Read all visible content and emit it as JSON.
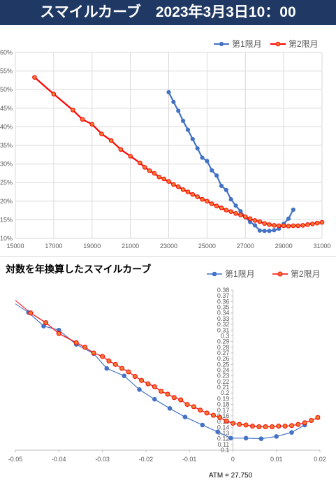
{
  "banner": {
    "title": "スマイルカーブ　2023年3月3日10：00",
    "bg": "#1f3864"
  },
  "colors": {
    "series1": "#4472c4",
    "series2": "#ff0000",
    "series2_fill": "#ed7d31",
    "grid": "#d9d9d9"
  },
  "chart_data": [
    {
      "type": "line",
      "title": "",
      "xlim": [
        15000,
        31000
      ],
      "ylim": [
        0.1,
        0.6
      ],
      "xticks": [
        15000,
        17000,
        19000,
        21000,
        23000,
        25000,
        27000,
        29000,
        31000
      ],
      "xtick_labels": [
        "15000",
        "17000",
        "19000",
        "21000",
        "23000",
        "25000",
        "27000",
        "29000",
        "31000"
      ],
      "yticks": [
        0.1,
        0.15,
        0.2,
        0.25,
        0.3,
        0.35,
        0.4,
        0.45,
        0.5,
        0.55,
        0.6
      ],
      "ytick_labels": [
        "10%",
        "15%",
        "20%",
        "25%",
        "30%",
        "35%",
        "40%",
        "45%",
        "50%",
        "55%",
        "60%"
      ],
      "grid": true,
      "legend": "top-right",
      "series": [
        {
          "name": "第1限月",
          "x": [
            23000,
            23250,
            23500,
            23750,
            24000,
            24250,
            24500,
            24750,
            25000,
            25250,
            25500,
            25750,
            26000,
            26250,
            26500,
            26750,
            27000,
            27250,
            27500,
            27750,
            28000,
            28250,
            28500,
            28750,
            29000,
            29250,
            29500
          ],
          "y": [
            0.493,
            0.467,
            0.443,
            0.416,
            0.392,
            0.367,
            0.342,
            0.317,
            0.308,
            0.283,
            0.269,
            0.241,
            0.23,
            0.205,
            0.188,
            0.173,
            0.157,
            0.144,
            0.135,
            0.121,
            0.12,
            0.12,
            0.122,
            0.126,
            0.139,
            0.153,
            0.177
          ]
        },
        {
          "name": "第2限月",
          "x": [
            16000,
            17000,
            18000,
            18500,
            19000,
            19500,
            20000,
            20500,
            21000,
            21500,
            21750,
            22000,
            22250,
            22500,
            22750,
            23000,
            23250,
            23500,
            23750,
            24000,
            24250,
            24500,
            24750,
            25000,
            25250,
            25500,
            25750,
            26000,
            26250,
            26500,
            26750,
            27000,
            27250,
            27500,
            27750,
            28000,
            28250,
            28500,
            28750,
            29000,
            29250,
            29500,
            29750,
            30000,
            30250,
            30500,
            30750,
            31000
          ],
          "y": [
            0.533,
            0.488,
            0.445,
            0.42,
            0.407,
            0.381,
            0.363,
            0.339,
            0.321,
            0.303,
            0.291,
            0.282,
            0.275,
            0.265,
            0.26,
            0.253,
            0.245,
            0.239,
            0.231,
            0.225,
            0.218,
            0.212,
            0.205,
            0.2,
            0.193,
            0.187,
            0.182,
            0.176,
            0.172,
            0.167,
            0.163,
            0.158,
            0.153,
            0.148,
            0.145,
            0.14,
            0.137,
            0.135,
            0.134,
            0.134,
            0.133,
            0.134,
            0.134,
            0.135,
            0.137,
            0.139,
            0.141,
            0.143
          ]
        }
      ]
    },
    {
      "type": "line",
      "title": "対数を年換算したスマイルカーブ",
      "xlim": [
        -0.05,
        0.02
      ],
      "ylim": [
        0.1,
        0.38
      ],
      "xticks": [
        -0.05,
        -0.04,
        -0.03,
        -0.02,
        -0.01,
        0,
        0.01,
        0.02
      ],
      "xtick_labels": [
        "-0.05",
        "-0.04",
        "-0.03",
        "-0.02",
        "-0.01",
        "0",
        "0.01",
        "0.02"
      ],
      "yticks": [
        0.1,
        0.11,
        0.12,
        0.13,
        0.14,
        0.15,
        0.16,
        0.17,
        0.18,
        0.19,
        0.2,
        0.21,
        0.22,
        0.23,
        0.24,
        0.25,
        0.26,
        0.27,
        0.28,
        0.29,
        0.3,
        0.31,
        0.32,
        0.33,
        0.34,
        0.35,
        0.36,
        0.37,
        0.38
      ],
      "ytick_labels": [
        "0.1",
        "0.11",
        "0.12",
        "0.13",
        "0.14",
        "0.15",
        "0.16",
        "0.17",
        "0.18",
        "0.19",
        "0.2",
        "0.21",
        "0.22",
        "0.23",
        "0.24",
        "0.25",
        "0.26",
        "0.27",
        "0.28",
        "0.29",
        "0.3",
        "0.31",
        "0.32",
        "0.33",
        "0.34",
        "0.35",
        "0.36",
        "0.37",
        "0.38"
      ],
      "y_axis_at_x": 0,
      "grid": false,
      "legend": "top-right",
      "annotation": "ATM = 27,750",
      "series": [
        {
          "name": "第1限月",
          "x": [
            -0.047,
            -0.0435,
            -0.04,
            -0.036,
            -0.032,
            -0.029,
            -0.025,
            -0.0215,
            -0.018,
            -0.0145,
            -0.011,
            -0.007,
            -0.0035,
            -0.0005,
            0.003,
            0.0065,
            0.01,
            0.0135,
            0.0165
          ],
          "y": [
            0.341,
            0.317,
            0.31,
            0.285,
            0.269,
            0.243,
            0.23,
            0.206,
            0.189,
            0.173,
            0.158,
            0.144,
            0.132,
            0.121,
            0.121,
            0.12,
            0.124,
            0.131,
            0.144
          ]
        },
        {
          "name": "第2限月",
          "x": [
            -0.0465,
            -0.043,
            -0.04,
            -0.036,
            -0.034,
            -0.032,
            -0.03,
            -0.0285,
            -0.027,
            -0.0255,
            -0.024,
            -0.0225,
            -0.021,
            -0.0195,
            -0.018,
            -0.0165,
            -0.015,
            -0.0135,
            -0.012,
            -0.0105,
            -0.009,
            -0.0075,
            -0.006,
            -0.0045,
            -0.003,
            -0.0015,
            0.0,
            0.0015,
            0.003,
            0.0045,
            0.006,
            0.0075,
            0.009,
            0.0105,
            0.012,
            0.0135,
            0.015,
            0.0165,
            0.018,
            0.0195
          ],
          "y": [
            0.34,
            0.323,
            0.304,
            0.288,
            0.28,
            0.27,
            0.264,
            0.256,
            0.25,
            0.243,
            0.237,
            0.229,
            0.222,
            0.216,
            0.211,
            0.203,
            0.198,
            0.192,
            0.188,
            0.18,
            0.176,
            0.17,
            0.165,
            0.161,
            0.157,
            0.151,
            0.147,
            0.145,
            0.144,
            0.142,
            0.141,
            0.141,
            0.141,
            0.142,
            0.142,
            0.143,
            0.145,
            0.148,
            0.152,
            0.157
          ]
        }
      ]
    }
  ]
}
